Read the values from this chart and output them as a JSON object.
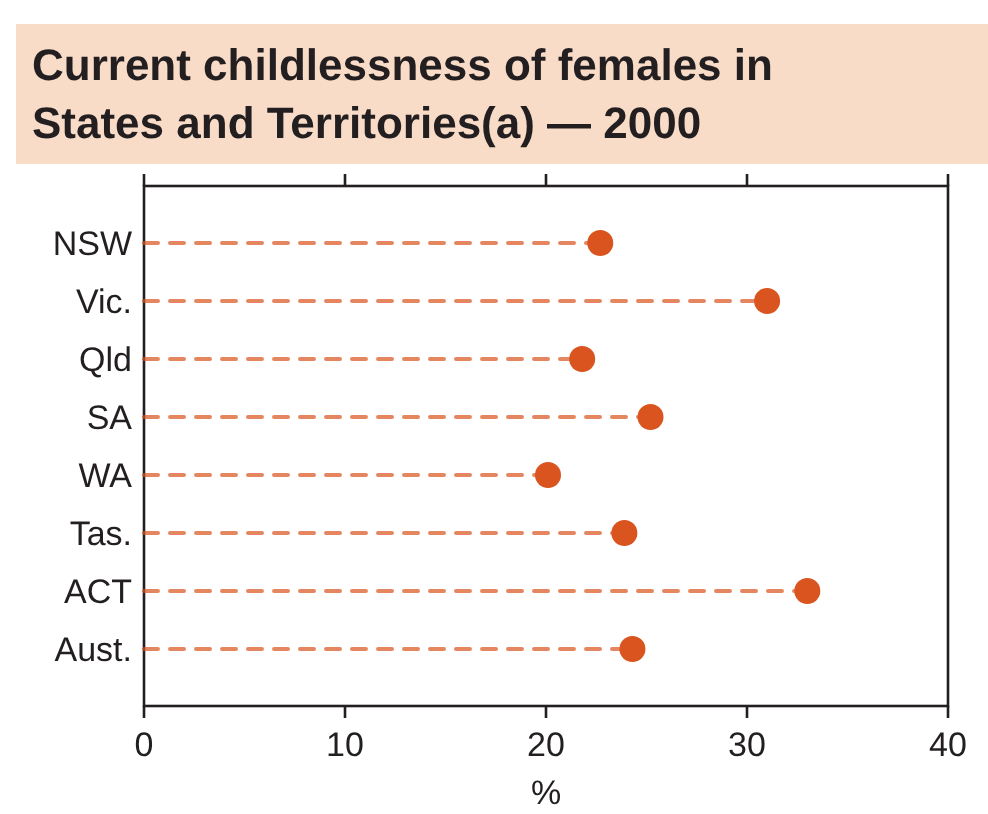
{
  "chart_data": {
    "type": "lollipop",
    "orientation": "horizontal",
    "title": "Current childlessness of females in States and Territories(a) — 2000",
    "xlabel": "%",
    "categories": [
      "NSW",
      "Vic.",
      "Qld",
      "SA",
      "WA",
      "Tas.",
      "ACT",
      "Aust."
    ],
    "values": [
      22.7,
      31.0,
      21.8,
      25.2,
      20.1,
      23.9,
      33.0,
      24.3
    ],
    "color": "#d9541e",
    "xlim": [
      0,
      40
    ],
    "xticks": [
      0,
      10,
      20,
      30,
      40
    ],
    "marker": "circle",
    "line_style": "dashed",
    "grid": false
  }
}
